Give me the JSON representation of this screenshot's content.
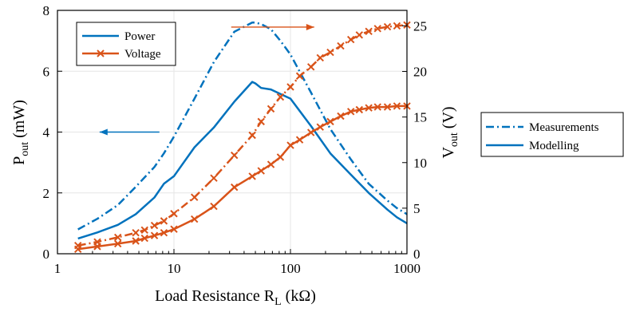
{
  "chart_data": {
    "type": "line",
    "xscale": "log",
    "xlim": [
      1,
      1000
    ],
    "xticks": [
      1,
      10,
      100,
      1000
    ],
    "xtick_labels": [
      "1",
      "10",
      "100",
      "1000"
    ],
    "xlabel_main": "Load Resistance R",
    "xlabel_sub": "L",
    "xlabel_unit": "(kΩ)",
    "y_left": {
      "label_main": "P",
      "label_sub": "out",
      "label_unit": "(mW)",
      "lim": [
        0,
        8
      ],
      "ticks": [
        0,
        2,
        4,
        6,
        8
      ],
      "tick_labels": [
        "0",
        "2",
        "4",
        "6",
        "8"
      ]
    },
    "y_right": {
      "label_main": "V",
      "label_sub": "out",
      "label_unit": "(V)",
      "lim": [
        0,
        26.7
      ],
      "ticks": [
        0,
        5,
        10,
        15,
        20,
        25
      ],
      "tick_labels": [
        "0",
        "5",
        "10",
        "15",
        "20",
        "25"
      ]
    },
    "grid": true,
    "legend_series": {
      "placement": "top-left",
      "entries": [
        {
          "label": "Power",
          "color": "#0072BD",
          "marker": "none"
        },
        {
          "label": "Voltage",
          "color": "#D95319",
          "marker": "x"
        }
      ]
    },
    "legend_style": {
      "placement": "outside-right",
      "entries": [
        {
          "label": "Measurements",
          "dash": "dashdot"
        },
        {
          "label": "Modelling",
          "dash": "solid"
        }
      ]
    },
    "annotations": [
      {
        "type": "arrow",
        "direction": "left",
        "points_to": "left axis",
        "color": "#0072BD",
        "from": [
          7.5,
          4.0
        ],
        "to": [
          2.3,
          4.0
        ]
      },
      {
        "type": "arrow",
        "direction": "right",
        "points_to": "right axis",
        "color": "#D95319",
        "from": [
          31,
          7.45
        ],
        "to": [
          160,
          7.45
        ]
      }
    ],
    "series": [
      {
        "name": "Power",
        "axis": "left",
        "style": "dashdot",
        "color": "#0072BD",
        "kind": "Measurements",
        "x": [
          1.5,
          2.2,
          3.3,
          4.7,
          6.8,
          8.2,
          10,
          15,
          22,
          33,
          47,
          50,
          56,
          68,
          82,
          100,
          150,
          220,
          330,
          470,
          680,
          820,
          1000
        ],
        "y": [
          0.8,
          1.15,
          1.6,
          2.2,
          2.85,
          3.3,
          3.85,
          5.1,
          6.3,
          7.3,
          7.6,
          7.6,
          7.55,
          7.38,
          7.0,
          6.55,
          5.3,
          4.1,
          3.1,
          2.3,
          1.75,
          1.5,
          1.3
        ]
      },
      {
        "name": "Power",
        "axis": "left",
        "style": "solid",
        "color": "#0072BD",
        "kind": "Modelling",
        "x": [
          1.5,
          2.2,
          3.3,
          4.7,
          6.8,
          8.2,
          10,
          15,
          22,
          33,
          47,
          50,
          56,
          68,
          82,
          100,
          150,
          220,
          330,
          470,
          680,
          820,
          1000
        ],
        "y": [
          0.5,
          0.7,
          0.95,
          1.3,
          1.85,
          2.3,
          2.55,
          3.5,
          4.15,
          5.0,
          5.65,
          5.6,
          5.45,
          5.4,
          5.25,
          5.1,
          4.2,
          3.3,
          2.6,
          2.0,
          1.45,
          1.2,
          1.0
        ]
      },
      {
        "name": "Voltage",
        "axis": "right",
        "style": "dashdot",
        "color": "#D95319",
        "kind": "Measurements",
        "marker": "x",
        "x": [
          1.5,
          2.2,
          3.3,
          4.7,
          5.6,
          6.8,
          8.2,
          10,
          15,
          22,
          33,
          47,
          56,
          68,
          82,
          100,
          120,
          150,
          180,
          220,
          270,
          330,
          390,
          470,
          560,
          680,
          820,
          1000
        ],
        "y": [
          0.9,
          1.3,
          1.8,
          2.3,
          2.6,
          3.1,
          3.6,
          4.4,
          6.2,
          8.3,
          10.8,
          13.0,
          14.5,
          15.9,
          17.2,
          18.3,
          19.5,
          20.5,
          21.5,
          22.1,
          22.8,
          23.5,
          24.0,
          24.4,
          24.7,
          24.9,
          25.0,
          25.1
        ]
      },
      {
        "name": "Voltage",
        "axis": "right",
        "style": "solid",
        "color": "#D95319",
        "kind": "Modelling",
        "marker": "x",
        "x": [
          1.5,
          2.2,
          3.3,
          4.7,
          5.6,
          6.8,
          8.2,
          10,
          15,
          22,
          33,
          47,
          56,
          68,
          82,
          100,
          120,
          150,
          180,
          220,
          270,
          330,
          390,
          470,
          560,
          680,
          820,
          1000
        ],
        "y": [
          0.5,
          0.8,
          1.1,
          1.4,
          1.7,
          2.0,
          2.3,
          2.7,
          3.8,
          5.2,
          7.3,
          8.5,
          9.1,
          9.8,
          10.6,
          11.9,
          12.5,
          13.3,
          13.9,
          14.5,
          15.1,
          15.6,
          15.8,
          16.0,
          16.1,
          16.1,
          16.2,
          16.2
        ]
      }
    ]
  }
}
